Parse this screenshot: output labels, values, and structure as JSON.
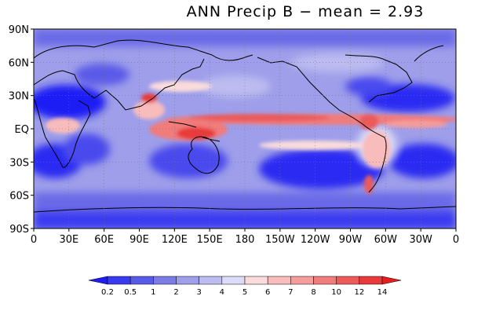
{
  "title": "ANN Precip B − mean = 2.93",
  "map": {
    "projection": "cylindrical-equidistant",
    "lon_range": [
      0,
      360
    ],
    "lat_range": [
      -90,
      90
    ],
    "lat_labels": [
      "90N",
      "60N",
      "30N",
      "EQ",
      "30S",
      "60S",
      "90S"
    ],
    "lat_values": [
      90,
      60,
      30,
      0,
      -30,
      -60,
      -90
    ],
    "lon_labels": [
      "0",
      "30E",
      "60E",
      "90E",
      "120E",
      "150E",
      "180",
      "150W",
      "120W",
      "90W",
      "60W",
      "30W",
      "0"
    ],
    "lon_values": [
      0,
      30,
      60,
      90,
      120,
      150,
      180,
      210,
      240,
      270,
      300,
      330,
      360
    ],
    "gridlines": "dotted",
    "fill": "shaded precipitation field with coastline overlay"
  },
  "colorbar": {
    "labels": [
      "0.2",
      "0.5",
      "1",
      "2",
      "3",
      "4",
      "5",
      "6",
      "7",
      "8",
      "10",
      "12",
      "14"
    ],
    "colors": [
      "#1d1df5",
      "#3a3af0",
      "#5a5ae8",
      "#7c7ce6",
      "#9e9eea",
      "#bcbcf0",
      "#dcdcf8",
      "#fadcdc",
      "#f8bcbc",
      "#f59c9c",
      "#f07c7c",
      "#ec5a5a",
      "#e83a3a",
      "#e51d1d"
    ]
  }
}
